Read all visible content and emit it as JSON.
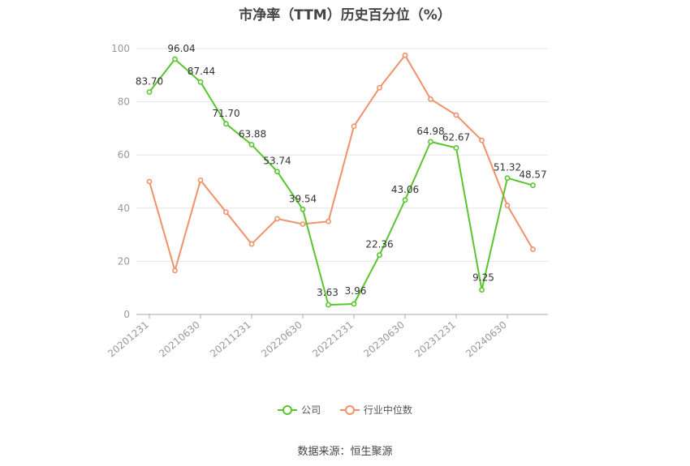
{
  "chart_data": {
    "type": "line",
    "title": "市净率（TTM）历史百分位（%）",
    "xlabel": "",
    "ylabel": "",
    "ylim": [
      0,
      100
    ],
    "yticks": [
      0,
      20,
      40,
      60,
      80,
      100
    ],
    "xtick_labels": [
      "20201231",
      "20210630",
      "20211231",
      "20220630",
      "20221231",
      "20230630",
      "20231231",
      "20240630"
    ],
    "grid": true,
    "legend_position": "bottom",
    "series": [
      {
        "name": "公司",
        "color": "#5ac52e",
        "values": [
          83.7,
          96.04,
          87.44,
          71.7,
          63.88,
          53.74,
          39.54,
          3.63,
          3.96,
          22.36,
          43.06,
          64.98,
          62.67,
          9.25,
          51.32,
          48.57
        ],
        "labels": [
          "83.70",
          "96.04",
          "87.44",
          "71.70",
          "63.88",
          "53.74",
          "39.54",
          "3.63",
          "3.96",
          "22.36",
          "43.06",
          "64.98",
          "62.67",
          "9.25",
          "51.32",
          "48.57"
        ]
      },
      {
        "name": "行业中位数",
        "color": "#f0916a",
        "values": [
          50.0,
          16.5,
          50.5,
          38.5,
          26.5,
          36.0,
          34.0,
          35.0,
          70.8,
          85.3,
          97.5,
          81.0,
          75.0,
          65.5,
          41.0,
          24.5
        ]
      }
    ]
  },
  "source": "数据来源：恒生聚源"
}
